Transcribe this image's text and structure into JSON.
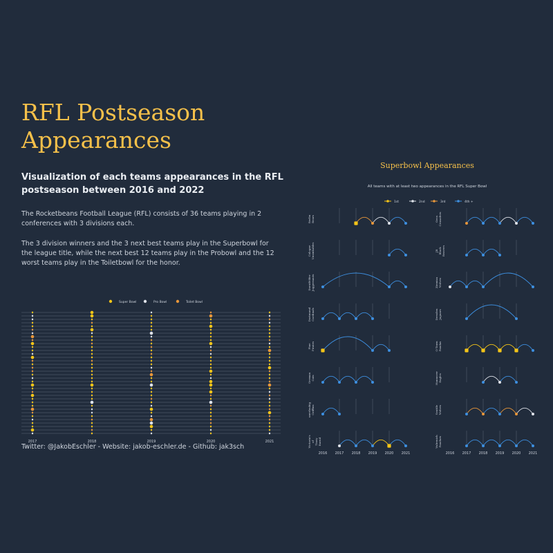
{
  "header": {
    "title": "RFL Postseason Appearances",
    "subtitle": "Visualization of each teams appearances in the RFL postseason between 2016 and 2022",
    "paragraph1": "The Rocketbeans Football League (RFL) consists of 36 teams playing in 2 conferences with 3 divisions each.",
    "paragraph2": "The 3 division winners and the 3 next best teams play in the Superbowl for the league title, while the next best 12 teams play in the Probowl and the 12 worst teams play in the Toiletbowl for the honor."
  },
  "footer": "Twitter: @JakobEschler - Website: jakob-eschler.de - Github: jak3sch",
  "colors": {
    "background": "#212c3c",
    "super": "#f5c518",
    "pro": "#dfe3ea",
    "toilet": "#e8963a",
    "first": "#f5c518",
    "second": "#dfe3ea",
    "third": "#e8963a",
    "fourth": "#3d8fe0",
    "grid": "#5e6878"
  },
  "chart_data": [
    {
      "type": "scatter",
      "legend": [
        "Super Bowl",
        "Pro Bowl",
        "Toilet Bowl"
      ],
      "x": [
        "2017",
        "2018",
        "2019",
        "2020",
        "2021"
      ],
      "rows": 36
    },
    {
      "type": "line",
      "title": "Superbowl Appearances",
      "subtitle": "All teams with at least two appearances in the RFL Super Bowl",
      "legend": [
        "1st",
        "2nd",
        "3rd",
        "4th +"
      ],
      "x": [
        "2016",
        "2017",
        "2018",
        "2019",
        "2020",
        "2021"
      ],
      "teams": [
        {
          "name": "Berlin Bears",
          "appearances": [
            [
              2018,
              1
            ],
            [
              2019,
              3
            ],
            [
              2020,
              2
            ],
            [
              2021,
              4
            ]
          ]
        },
        {
          "name": "Orca Crusaders",
          "appearances": [
            [
              2017,
              3
            ],
            [
              2018,
              4
            ],
            [
              2019,
              4
            ],
            [
              2020,
              2
            ],
            [
              2021,
              4
            ]
          ]
        },
        {
          "name": "Cologne Unsinkables",
          "appearances": [
            [
              2020,
              4
            ],
            [
              2021,
              4
            ]
          ]
        },
        {
          "name": "JB Black Beavers",
          "appearances": [
            [
              2017,
              4
            ],
            [
              2018,
              4
            ],
            [
              2019,
              4
            ]
          ]
        },
        {
          "name": "Dorstfelder Juggernauts",
          "appearances": [
            [
              2016,
              4
            ],
            [
              2020,
              4
            ],
            [
              2021,
              4
            ]
          ]
        },
        {
          "name": "Ziemiza Wolves",
          "appearances": [
            [
              2016,
              2
            ],
            [
              2017,
              4
            ],
            [
              2018,
              4
            ],
            [
              2021,
              4
            ]
          ]
        },
        {
          "name": "Dortmund Cardinals",
          "appearances": [
            [
              2016,
              4
            ],
            [
              2017,
              4
            ],
            [
              2018,
              4
            ],
            [
              2019,
              4
            ]
          ]
        },
        {
          "name": "Dresden Jaguars",
          "appearances": [
            [
              2017,
              4
            ],
            [
              2020,
              4
            ]
          ]
        },
        {
          "name": "Fine Pirates",
          "appearances": [
            [
              2016,
              1
            ],
            [
              2019,
              4
            ],
            [
              2020,
              4
            ]
          ]
        },
        {
          "name": "G-Town Pandas",
          "appearances": [
            [
              2017,
              1
            ],
            [
              2018,
              1
            ],
            [
              2019,
              1
            ],
            [
              2020,
              1
            ],
            [
              2021,
              4
            ]
          ]
        },
        {
          "name": "German Cats",
          "appearances": [
            [
              2016,
              4
            ],
            [
              2017,
              4
            ],
            [
              2018,
              4
            ],
            [
              2019,
              4
            ]
          ]
        },
        {
          "name": "Hannover Eagles",
          "appearances": [
            [
              2018,
              4
            ],
            [
              2019,
              2
            ],
            [
              2020,
              4
            ]
          ]
        },
        {
          "name": "unerlaubig Griffins",
          "appearances": [
            [
              2016,
              4
            ],
            [
              2017,
              4
            ]
          ]
        },
        {
          "name": "Seattle Wolves",
          "appearances": [
            [
              2017,
              4
            ],
            [
              2018,
              3
            ],
            [
              2019,
              4
            ],
            [
              2020,
              3
            ],
            [
              2021,
              2
            ]
          ]
        },
        {
          "name": "Victoria's of Tiney Burnd",
          "appearances": [
            [
              2017,
              2
            ],
            [
              2018,
              4
            ],
            [
              2019,
              4
            ],
            [
              2020,
              1
            ],
            [
              2021,
              4
            ]
          ]
        },
        {
          "name": "Vulrenich Pandurs",
          "appearances": [
            [
              2017,
              4
            ],
            [
              2018,
              4
            ],
            [
              2019,
              4
            ],
            [
              2020,
              4
            ],
            [
              2021,
              4
            ]
          ]
        }
      ]
    }
  ]
}
